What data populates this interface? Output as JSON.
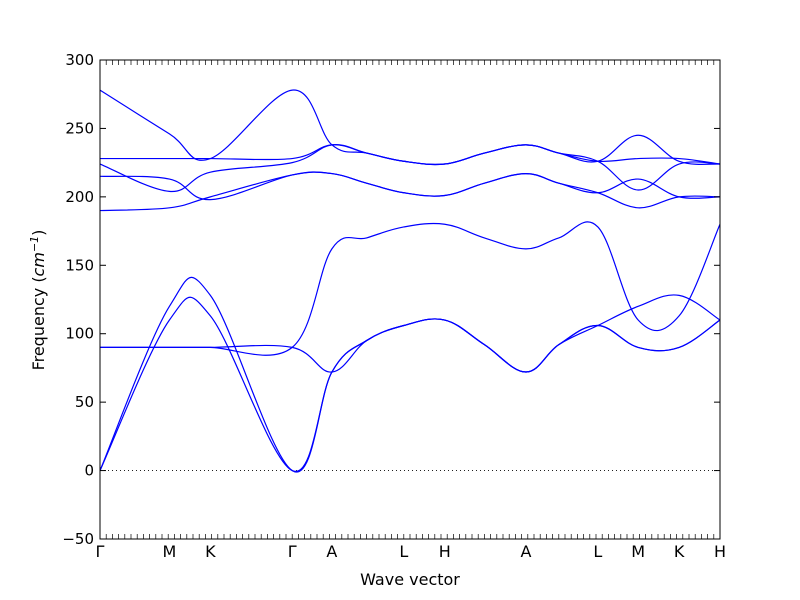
{
  "chart_data": {
    "type": "line",
    "xlabel": "Wave vector",
    "ylabel": "Frequency ($cm^{-1}$)",
    "ylabel_parts": {
      "text": "Frequency (",
      "unit_base": "cm",
      "unit_exp": "−1",
      "close": ")"
    },
    "ylim": [
      -50,
      300
    ],
    "yticks": [
      -50,
      0,
      50,
      100,
      150,
      200,
      250,
      300
    ],
    "xlim": [
      0,
      100
    ],
    "xticks": [
      {
        "label": "Γ",
        "x": 0
      },
      {
        "label": "M",
        "x": 11.2
      },
      {
        "label": "K",
        "x": 17.8
      },
      {
        "label": "Γ",
        "x": 31.0
      },
      {
        "label": "A",
        "x": 37.4
      },
      {
        "label": "L",
        "x": 49.0
      },
      {
        "label": "H",
        "x": 55.6
      },
      {
        "label": "A",
        "x": 68.7
      },
      {
        "label": "L",
        "x": 80.3
      },
      {
        "label": "M",
        "x": 86.8
      },
      {
        "label": "K",
        "x": 93.4
      },
      {
        "label": "H",
        "x": 100
      }
    ],
    "zero_line": {
      "y": 0,
      "style": "dotted"
    },
    "line_color": "#0000ff",
    "series": [
      {
        "x": [
          0,
          11.2,
          17.8,
          31.0,
          37.4,
          43.0,
          49.0,
          55.6,
          62.0,
          68.7,
          74.0,
          80.3,
          86.8,
          93.4,
          100
        ],
        "y": [
          0,
          110,
          113,
          0,
          72,
          95,
          106,
          110,
          92,
          72,
          92,
          106,
          90,
          90,
          110
        ]
      },
      {
        "x": [
          0,
          11.2,
          17.8,
          31.0,
          37.4,
          43.0,
          49.0,
          55.6,
          62.0,
          68.7,
          74.0,
          80.3,
          86.8,
          93.4,
          100
        ],
        "y": [
          0,
          120,
          128,
          0,
          72,
          95,
          106,
          110,
          92,
          72,
          92,
          106,
          120,
          128,
          110
        ]
      },
      {
        "x": [
          0,
          11.2,
          17.8,
          31.0,
          37.4,
          43.0,
          49.0,
          55.6,
          62.0,
          68.7,
          74.0,
          80.3,
          86.8,
          93.4,
          100
        ],
        "y": [
          90,
          90,
          90,
          90,
          72,
          95,
          106,
          110,
          92,
          72,
          92,
          106,
          90,
          90,
          110
        ]
      },
      {
        "x": [
          0,
          11.2,
          17.8,
          31.0,
          37.4,
          43.0,
          49.0,
          55.6,
          62.0,
          68.7,
          74.0,
          80.3,
          86.8,
          93.4,
          100
        ],
        "y": [
          90,
          90,
          90,
          90,
          162,
          170,
          178,
          180,
          170,
          162,
          170,
          178,
          110,
          113,
          180
        ]
      },
      {
        "x": [
          0,
          11.2,
          17.8,
          31.0,
          37.4,
          43.0,
          49.0,
          55.6,
          62.0,
          68.7,
          74.0,
          80.3,
          86.8,
          93.4,
          100
        ],
        "y": [
          190,
          192,
          200,
          216,
          217,
          210,
          203,
          201,
          210,
          217,
          210,
          203,
          192,
          200,
          200
        ]
      },
      {
        "x": [
          0,
          11.2,
          17.8,
          31.0,
          37.4,
          43.0,
          49.0,
          55.6,
          62.0,
          68.7,
          74.0,
          80.3,
          86.8,
          93.4,
          100
        ],
        "y": [
          215,
          213,
          198,
          216,
          217,
          210,
          203,
          201,
          210,
          217,
          210,
          203,
          213,
          200,
          200
        ]
      },
      {
        "x": [
          0,
          11.2,
          17.8,
          31.0,
          37.4,
          43.0,
          49.0,
          55.6,
          62.0,
          68.7,
          74.0,
          80.3,
          86.8,
          93.4,
          100
        ],
        "y": [
          224,
          204,
          218,
          225,
          238,
          232,
          226,
          224,
          232,
          238,
          232,
          226,
          205,
          224,
          224
        ]
      },
      {
        "x": [
          0,
          11.2,
          17.8,
          31.0,
          37.4,
          43.0,
          49.0,
          55.6,
          62.0,
          68.7,
          74.0,
          80.3,
          86.8,
          93.4,
          100
        ],
        "y": [
          228,
          228,
          228,
          228,
          238,
          232,
          226,
          224,
          232,
          238,
          232,
          226,
          228,
          228,
          224
        ]
      },
      {
        "x": [
          0,
          11.2,
          17.8,
          31.0,
          37.4,
          43.0,
          49.0,
          55.6,
          62.0,
          68.7,
          74.0,
          80.3,
          86.8,
          93.4,
          100
        ],
        "y": [
          278,
          246,
          228,
          278,
          238,
          232,
          226,
          224,
          232,
          238,
          232,
          226,
          245,
          226,
          224
        ]
      }
    ]
  }
}
